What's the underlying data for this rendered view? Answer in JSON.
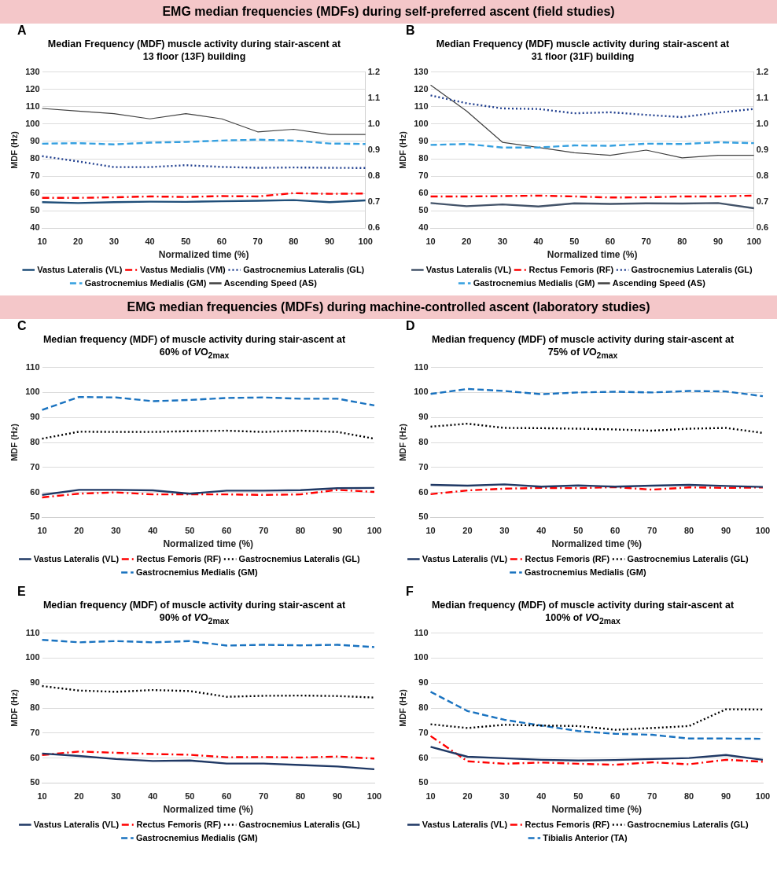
{
  "chart_data": [
    {
      "type": "line",
      "title": "Median Frequency (MDF) muscle activity during stair-ascent at 13 floor (13F) building",
      "xlabel": "Normalized time (%)",
      "ylabel": "MDF (Hz)",
      "annotations": [
        "EMG median frequencies (MDFs) during self-preferred ascent (field studies)",
        "A"
      ],
      "categories": [
        "10",
        "20",
        "30",
        "40",
        "50",
        "60",
        "70",
        "80",
        "90",
        "100"
      ],
      "ylim": [
        40,
        130
      ],
      "yticks": [
        40,
        50,
        60,
        70,
        80,
        90,
        100,
        110,
        120,
        130
      ],
      "y2lim": [
        0.6,
        1.2
      ],
      "y2ticks": [
        0.6,
        0.7,
        0.8,
        0.9,
        {
          "value": 1,
          "label": "1.0"
        },
        1.1,
        1.2
      ],
      "grid": "y",
      "legend": "bottom",
      "marker": "none",
      "series": [
        {
          "name": "Vastus Lateralis (VL)",
          "color": "#1f4e79",
          "line_style": "solid",
          "values": [
            55,
            54.5,
            55,
            55.3,
            55.2,
            55.5,
            55.8,
            56.2,
            55,
            56
          ]
        },
        {
          "name": "Vastus Medialis (VM)",
          "color": "#ff0000",
          "line_style": "dashdot",
          "values": [
            57.5,
            57.5,
            57.8,
            58.3,
            58,
            58.5,
            58.3,
            60.2,
            59.8,
            60
          ]
        },
        {
          "name": "Gastrocnemius Lateralis (GL)",
          "color": "#203f8f",
          "line_style": "dotted",
          "values": [
            81.5,
            78.5,
            75.2,
            75.2,
            76.3,
            75.3,
            74.8,
            75,
            74.8,
            74.7
          ]
        },
        {
          "name": "Gastrocnemius Medialis (GM)",
          "color": "#35a0e0",
          "line_style": "dashed",
          "values": [
            88.7,
            89,
            88.3,
            89.3,
            89.7,
            90.5,
            91,
            90.5,
            88.8,
            88.5
          ]
        },
        {
          "name": "Ascending Speed (AS)",
          "color": "#404040",
          "line_style": "solid",
          "axis": "y2",
          "values": [
            1.06,
            1.05,
            1.04,
            1.02,
            1.04,
            1.02,
            0.97,
            0.98,
            0.96,
            0.96
          ]
        }
      ]
    },
    {
      "type": "line",
      "title": "Median Frequency (MDF) muscle activity during stair-ascent at 31 floor (31F) building",
      "xlabel": "Normalized time (%)",
      "ylabel": "MDF (Hz)",
      "annotations": [
        "B"
      ],
      "categories": [
        "10",
        "20",
        "30",
        "40",
        "50",
        "60",
        "70",
        "80",
        "90",
        "100"
      ],
      "ylim": [
        40,
        130
      ],
      "yticks": [
        40,
        50,
        60,
        70,
        80,
        90,
        100,
        110,
        120,
        130
      ],
      "y2lim": [
        0.6,
        1.2
      ],
      "y2ticks": [
        0.6,
        0.7,
        0.8,
        0.9,
        {
          "value": 1,
          "label": "1.0"
        },
        1.1,
        1.2
      ],
      "grid": "y",
      "legend": "bottom",
      "marker": "none",
      "series": [
        {
          "name": "Vastus Lateralis (VL)",
          "color": "#44546a",
          "line_style": "solid",
          "values": [
            54.5,
            52.7,
            53.7,
            52.5,
            54.3,
            54,
            54.3,
            54.2,
            54.5,
            51.5
          ]
        },
        {
          "name": "Rectus Femoris (RF)",
          "color": "#ff0000",
          "line_style": "dashdot",
          "values": [
            58.3,
            58.3,
            58.5,
            58.8,
            58.3,
            57.7,
            57.8,
            58.3,
            58.3,
            58.8
          ]
        },
        {
          "name": "Gastrocnemius Lateralis (GL)",
          "color": "#203f8f",
          "line_style": "dotted",
          "values": [
            116.5,
            112,
            109,
            108.7,
            106.2,
            106.8,
            105.3,
            104,
            106.6,
            108.7
          ]
        },
        {
          "name": "Gastrocnemius Medialis (GM)",
          "color": "#35a0e0",
          "line_style": "dashed",
          "values": [
            88,
            88.5,
            86.5,
            86.5,
            87.7,
            87.5,
            88.7,
            88.5,
            89.5,
            89
          ]
        },
        {
          "name": "Ascending Speed (AS)",
          "color": "#404040",
          "line_style": "solid",
          "axis": "y2",
          "values": [
            1.15,
            1.05,
            0.93,
            0.91,
            0.89,
            0.88,
            0.9,
            0.87,
            0.88,
            0.88
          ]
        }
      ]
    },
    {
      "type": "line",
      "title": "Median frequency (MDF) of muscle activity during stair-ascent at 60% of VO$_{2max}$",
      "xlabel": "Normalized time (%)",
      "ylabel": "MDF (Hz)",
      "annotations": [
        "EMG median frequencies (MDFs) during machine-controlled ascent (laboratory studies)",
        "C"
      ],
      "categories": [
        "10",
        "20",
        "30",
        "40",
        "50",
        "60",
        "70",
        "80",
        "90",
        "100"
      ],
      "ylim": [
        50,
        110
      ],
      "yticks": [
        50,
        60,
        70,
        80,
        90,
        100,
        110
      ],
      "grid": "y",
      "legend": "bottom",
      "marker": "none",
      "series": [
        {
          "name": "Vastus Lateralis (VL)",
          "color": "#1f3864",
          "line_style": "solid",
          "values": [
            59,
            61,
            61,
            60.8,
            59.5,
            60.7,
            60.7,
            60.9,
            61.7,
            61.8
          ]
        },
        {
          "name": "Rectus Femoris (RF)",
          "color": "#ff0000",
          "line_style": "dashdot",
          "values": [
            58,
            59.5,
            60,
            59.2,
            59.2,
            59.2,
            59,
            59.2,
            61,
            60.2
          ]
        },
        {
          "name": "Gastrocnemius Lateralis (GL)",
          "color": "#000000",
          "line_style": "dotted",
          "values": [
            81.5,
            84.3,
            84.2,
            84.2,
            84.5,
            84.7,
            84.2,
            84.7,
            84.2,
            81.5
          ]
        },
        {
          "name": "Gastrocnemius Medialis (GM)",
          "color": "#1a73c0",
          "line_style": "dashed",
          "values": [
            93,
            98.2,
            98,
            96.5,
            97,
            97.8,
            98,
            97.5,
            97.5,
            94.8
          ]
        }
      ]
    },
    {
      "type": "line",
      "title": "Median frequency (MDF) of muscle activity during stair-ascent at 75% of VO$_{2max}$",
      "xlabel": "Normalized time (%)",
      "ylabel": "MDF (Hz)",
      "annotations": [
        "D"
      ],
      "categories": [
        "10",
        "20",
        "30",
        "40",
        "50",
        "60",
        "70",
        "80",
        "90",
        "100"
      ],
      "ylim": [
        50,
        110
      ],
      "yticks": [
        50,
        60,
        70,
        80,
        90,
        100,
        110
      ],
      "grid": "y",
      "legend": "bottom",
      "marker": "none",
      "series": [
        {
          "name": "Vastus Lateralis (VL)",
          "color": "#1f3864",
          "line_style": "solid",
          "values": [
            63,
            62.7,
            63.2,
            62.3,
            62.8,
            62.3,
            62.7,
            63,
            62.6,
            62.2
          ]
        },
        {
          "name": "Rectus Femoris (RF)",
          "color": "#ff0000",
          "line_style": "dashdot",
          "values": [
            59.3,
            60.8,
            61.5,
            61.8,
            61.7,
            62.1,
            61.1,
            62,
            61.8,
            62
          ]
        },
        {
          "name": "Gastrocnemius Lateralis (GL)",
          "color": "#000000",
          "line_style": "dotted",
          "values": [
            86.3,
            87.5,
            85.8,
            85.7,
            85.5,
            85.2,
            84.7,
            85.5,
            85.8,
            83.8
          ]
        },
        {
          "name": "Gastrocnemius Medialis (GM)",
          "color": "#1a73c0",
          "line_style": "dashed",
          "values": [
            99.4,
            101.4,
            100.6,
            99.3,
            100,
            100.3,
            100,
            100.6,
            100.4,
            98.5
          ]
        }
      ]
    },
    {
      "type": "line",
      "title": "Median frequency (MDF) of muscle activity during stair-ascent at 90% of VO$_{2max}$",
      "xlabel": "Normalized time (%)",
      "ylabel": "MDF (Hz)",
      "annotations": [
        "E"
      ],
      "categories": [
        "10",
        "20",
        "30",
        "40",
        "50",
        "60",
        "70",
        "80",
        "90",
        "100"
      ],
      "ylim": [
        50,
        110
      ],
      "yticks": [
        50,
        60,
        70,
        80,
        90,
        100,
        110
      ],
      "grid": "y",
      "legend": "bottom",
      "marker": "none",
      "series": [
        {
          "name": "Vastus Lateralis (VL)",
          "color": "#1f3864",
          "line_style": "solid",
          "values": [
            61.8,
            60.8,
            59.6,
            58.8,
            59,
            57.8,
            57.8,
            57.2,
            56.6,
            55.5
          ]
        },
        {
          "name": "Rectus Femoris (RF)",
          "color": "#ff0000",
          "line_style": "dashdot",
          "values": [
            61.2,
            62.6,
            62.1,
            61.6,
            61.3,
            60.3,
            60.4,
            60.2,
            60.6,
            59.8
          ]
        },
        {
          "name": "Gastrocnemius Lateralis (GL)",
          "color": "#000000",
          "line_style": "dotted",
          "values": [
            88.8,
            87,
            86.5,
            87.2,
            86.8,
            84.5,
            84.9,
            85,
            84.8,
            84.2
          ]
        },
        {
          "name": "Gastrocnemius Medialis (GM)",
          "color": "#1a73c0",
          "line_style": "dashed",
          "values": [
            107.3,
            106.3,
            106.8,
            106.3,
            106.8,
            105,
            105.3,
            105.1,
            105.3,
            104.4
          ]
        }
      ]
    },
    {
      "type": "line",
      "title": "Median frequency (MDF) of muscle activity during stair-ascent at 100% of VO$_{2max}$",
      "xlabel": "Normalized time (%)",
      "ylabel": "MDF (Hz)",
      "annotations": [
        "F"
      ],
      "categories": [
        "10",
        "20",
        "30",
        "40",
        "50",
        "60",
        "70",
        "80",
        "90",
        "100"
      ],
      "ylim": [
        50,
        110
      ],
      "yticks": [
        50,
        60,
        70,
        80,
        90,
        100,
        110
      ],
      "grid": "y",
      "legend": "bottom",
      "marker": "none",
      "series": [
        {
          "name": "Vastus Lateralis (VL)",
          "color": "#1f3864",
          "line_style": "solid",
          "values": [
            64.5,
            60.5,
            59.9,
            59.3,
            59,
            59.2,
            59.6,
            60,
            61.2,
            59.3
          ]
        },
        {
          "name": "Rectus Femoris (RF)",
          "color": "#ff0000",
          "line_style": "dashdot",
          "values": [
            68.8,
            58.7,
            57.7,
            58.2,
            57.7,
            57.3,
            58.3,
            57.5,
            59.3,
            58.5
          ]
        },
        {
          "name": "Gastrocnemius Lateralis (GL)",
          "color": "#000000",
          "line_style": "dotted",
          "values": [
            73.5,
            72,
            73.3,
            73,
            72.8,
            71.3,
            72,
            72.8,
            79.5,
            79.4
          ]
        },
        {
          "name": "Tibialis Anterior (TA)",
          "color": "#1a73c0",
          "line_style": "dashed",
          "values": [
            86.5,
            78.8,
            75.3,
            73,
            70.8,
            69.7,
            69.3,
            67.8,
            67.8,
            67.7
          ]
        }
      ]
    }
  ]
}
